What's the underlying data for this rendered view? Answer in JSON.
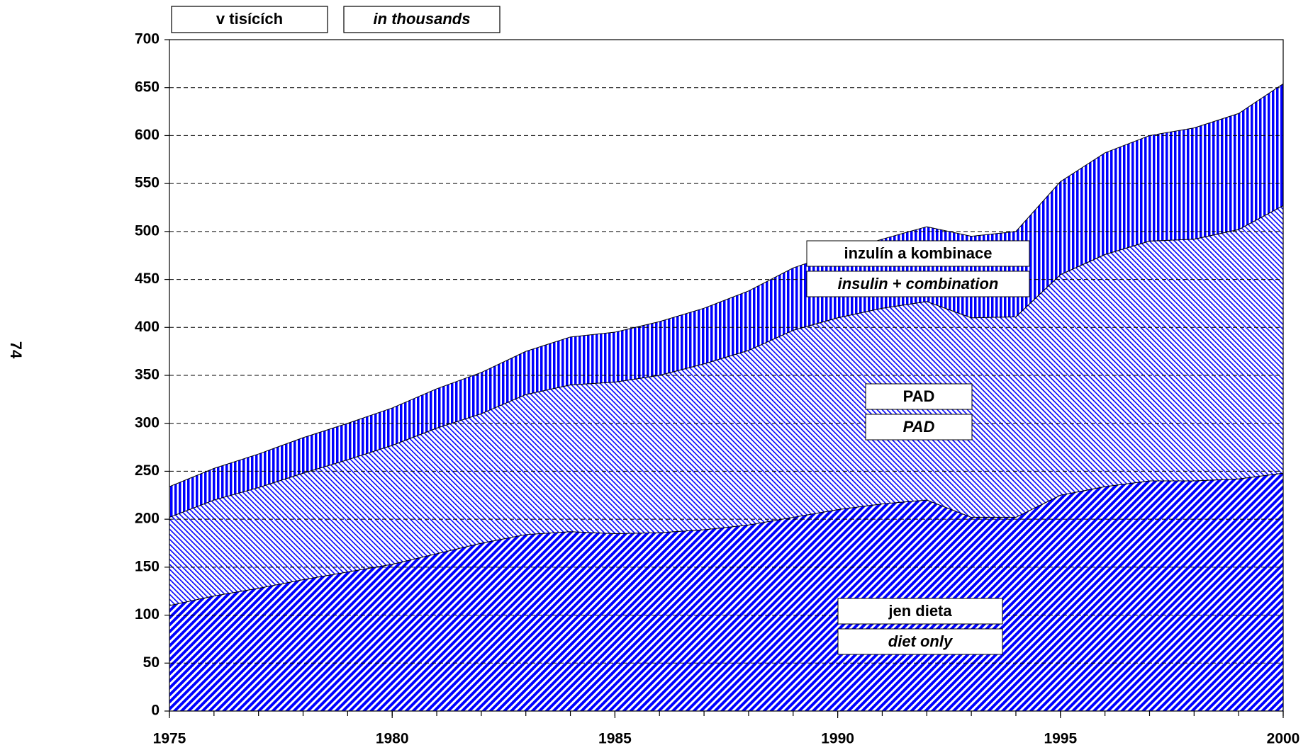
{
  "chart_data": {
    "type": "stacked_area",
    "unit_labels": [
      "v tisících",
      "in thousands"
    ],
    "page_number": "74",
    "x": [
      1975,
      1976,
      1977,
      1978,
      1979,
      1980,
      1981,
      1982,
      1983,
      1984,
      1985,
      1986,
      1987,
      1988,
      1989,
      1990,
      1991,
      1992,
      1993,
      1994,
      1995,
      1996,
      1997,
      1998,
      1999,
      2000
    ],
    "series": [
      {
        "name": "jen dieta",
        "name_en": "diet only",
        "color": "#0000ff",
        "pattern": "diagonal-dense",
        "values": [
          110,
          120,
          128,
          137,
          145,
          153,
          164,
          175,
          184,
          187,
          185,
          186,
          189,
          194,
          202,
          210,
          216,
          220,
          202,
          202,
          225,
          234,
          240,
          240,
          242,
          248
        ]
      },
      {
        "name": "PAD",
        "name_en": "PAD",
        "color": "#0000ff",
        "pattern": "diagonal-light",
        "values": [
          92,
          100,
          105,
          111,
          117,
          124,
          131,
          135,
          146,
          153,
          158,
          164,
          173,
          182,
          195,
          200,
          204,
          207,
          208,
          209,
          230,
          242,
          250,
          252,
          260,
          279
        ]
      },
      {
        "name": "inzulín a kombinace",
        "name_en": "insulin + combination",
        "color": "#0000ff",
        "pattern": "vertical",
        "values": [
          32,
          33,
          35,
          37,
          38,
          39,
          41,
          43,
          45,
          50,
          52,
          56,
          58,
          62,
          65,
          68,
          72,
          78,
          85,
          89,
          97,
          106,
          110,
          116,
          121,
          127
        ]
      }
    ],
    "xlim": [
      1975,
      2000
    ],
    "xticks": [
      1975,
      1980,
      1985,
      1990,
      1995,
      2000
    ],
    "ylim": [
      0,
      700
    ],
    "yticks": [
      0,
      50,
      100,
      150,
      200,
      250,
      300,
      350,
      400,
      450,
      500,
      550,
      600,
      650,
      700
    ],
    "grid": true
  }
}
